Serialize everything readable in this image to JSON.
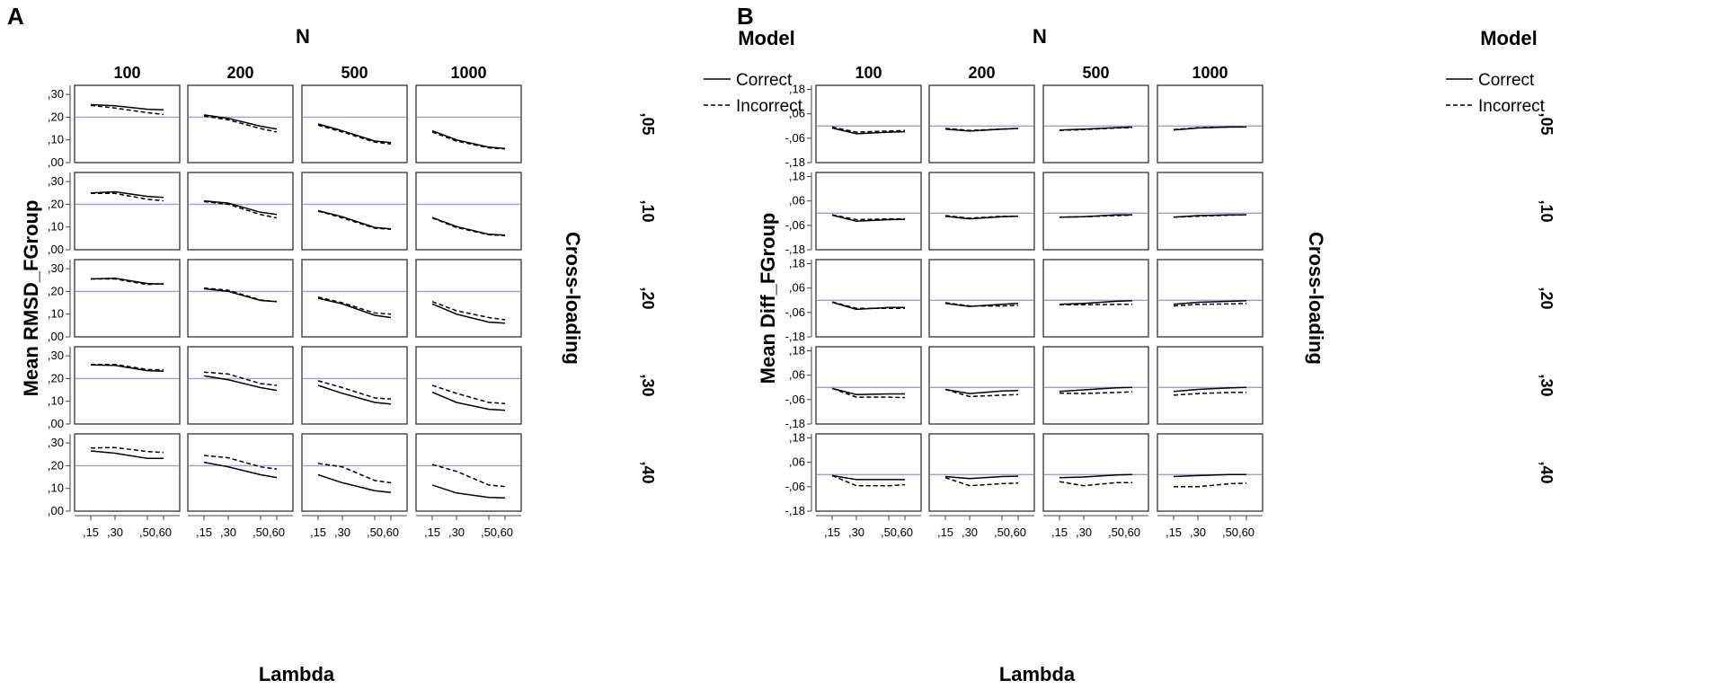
{
  "chart_data": [
    {
      "panel_label": "A",
      "type": "line",
      "facet_column_title": "N",
      "facet_columns": [
        "100",
        "200",
        "500",
        "1000"
      ],
      "facet_row_title": "Cross-loading",
      "facet_rows": [
        ",05",
        ",10",
        ",20",
        ",30",
        ",40"
      ],
      "xlabel": "Lambda",
      "ylabel": "Mean RMSD_FGroup",
      "x_tick_labels": [
        ",15",
        ",30",
        ",50",
        ",60"
      ],
      "x": [
        0.15,
        0.3,
        0.5,
        0.6
      ],
      "y_tick_labels": [
        ",00",
        ",10",
        ",20",
        ",30"
      ],
      "ylim": [
        0,
        0.34
      ],
      "yticks": [
        0,
        0.1,
        0.2,
        0.3
      ],
      "reference_line": 0.2,
      "reference_color": "#9a9af0",
      "legend_title": "Model",
      "legend": [
        "Correct",
        "Incorrect"
      ],
      "series_styles": {
        "Correct": "solid",
        "Incorrect": "dashed"
      },
      "cells": [
        [
          {
            "Correct": [
              0.255,
              0.25,
              0.235,
              0.232
            ],
            "Incorrect": [
              0.252,
              0.24,
              0.22,
              0.212
            ]
          },
          {
            "Correct": [
              0.21,
              0.195,
              0.16,
              0.148
            ],
            "Incorrect": [
              0.205,
              0.188,
              0.15,
              0.135
            ]
          },
          {
            "Correct": [
              0.17,
              0.14,
              0.095,
              0.088
            ],
            "Incorrect": [
              0.165,
              0.135,
              0.09,
              0.082
            ]
          },
          {
            "Correct": [
              0.14,
              0.1,
              0.068,
              0.062
            ],
            "Incorrect": [
              0.135,
              0.095,
              0.065,
              0.06
            ]
          }
        ],
        [
          {
            "Correct": [
              0.25,
              0.255,
              0.235,
              0.23
            ],
            "Incorrect": [
              0.248,
              0.248,
              0.222,
              0.215
            ]
          },
          {
            "Correct": [
              0.215,
              0.205,
              0.165,
              0.155
            ],
            "Incorrect": [
              0.212,
              0.2,
              0.155,
              0.14
            ]
          },
          {
            "Correct": [
              0.172,
              0.145,
              0.098,
              0.092
            ],
            "Incorrect": [
              0.17,
              0.14,
              0.095,
              0.09
            ]
          },
          {
            "Correct": [
              0.142,
              0.102,
              0.068,
              0.064
            ],
            "Incorrect": [
              0.14,
              0.098,
              0.066,
              0.062
            ]
          }
        ],
        [
          {
            "Correct": [
              0.255,
              0.258,
              0.235,
              0.232
            ],
            "Incorrect": [
              0.255,
              0.255,
              0.23,
              0.235
            ]
          },
          {
            "Correct": [
              0.212,
              0.2,
              0.16,
              0.155
            ],
            "Incorrect": [
              0.215,
              0.205,
              0.162,
              0.155
            ]
          },
          {
            "Correct": [
              0.17,
              0.145,
              0.095,
              0.085
            ],
            "Incorrect": [
              0.175,
              0.15,
              0.105,
              0.1
            ]
          },
          {
            "Correct": [
              0.145,
              0.1,
              0.065,
              0.06
            ],
            "Incorrect": [
              0.155,
              0.115,
              0.085,
              0.075
            ]
          }
        ],
        [
          {
            "Correct": [
              0.26,
              0.258,
              0.235,
              0.232
            ],
            "Incorrect": [
              0.262,
              0.262,
              0.24,
              0.238
            ]
          },
          {
            "Correct": [
              0.212,
              0.195,
              0.16,
              0.148
            ],
            "Incorrect": [
              0.228,
              0.22,
              0.178,
              0.17
            ]
          },
          {
            "Correct": [
              0.17,
              0.135,
              0.095,
              0.088
            ],
            "Incorrect": [
              0.19,
              0.16,
              0.115,
              0.11
            ]
          },
          {
            "Correct": [
              0.14,
              0.095,
              0.065,
              0.06
            ],
            "Incorrect": [
              0.17,
              0.135,
              0.095,
              0.09
            ]
          }
        ],
        [
          {
            "Correct": [
              0.265,
              0.255,
              0.232,
              0.232
            ],
            "Incorrect": [
              0.278,
              0.28,
              0.262,
              0.258
            ]
          },
          {
            "Correct": [
              0.215,
              0.195,
              0.16,
              0.148
            ],
            "Incorrect": [
              0.245,
              0.235,
              0.195,
              0.185
            ]
          },
          {
            "Correct": [
              0.16,
              0.125,
              0.09,
              0.082
            ],
            "Incorrect": [
              0.21,
              0.195,
              0.135,
              0.125
            ]
          },
          {
            "Correct": [
              0.115,
              0.08,
              0.06,
              0.058
            ],
            "Incorrect": [
              0.205,
              0.175,
              0.115,
              0.108
            ]
          }
        ]
      ]
    },
    {
      "panel_label": "B",
      "type": "line",
      "facet_column_title": "N",
      "facet_columns": [
        "100",
        "200",
        "500",
        "1000"
      ],
      "facet_row_title": "Cross-loading",
      "facet_rows": [
        ",05",
        ",10",
        ",20",
        ",30",
        ",40"
      ],
      "xlabel": "Lambda",
      "ylabel": "Mean Diff_FGroup",
      "x_tick_labels": [
        ",15",
        ",30",
        ",50",
        ",60"
      ],
      "x": [
        0.15,
        0.3,
        0.5,
        0.6
      ],
      "y_tick_labels": [
        "-,18",
        "-,06",
        ",06",
        ",18"
      ],
      "ylim": [
        -0.18,
        0.2
      ],
      "yticks": [
        -0.18,
        -0.06,
        0.06,
        0.18
      ],
      "reference_line": 0.0,
      "reference_color": "#9a9af0",
      "legend_title": "Model",
      "legend": [
        "Correct",
        "Incorrect"
      ],
      "series_styles": {
        "Correct": "solid",
        "Incorrect": "dashed"
      },
      "cells": [
        [
          {
            "Correct": [
              -0.01,
              -0.038,
              -0.03,
              -0.028
            ],
            "Incorrect": [
              -0.005,
              -0.03,
              -0.025,
              -0.022
            ]
          },
          {
            "Correct": [
              -0.015,
              -0.025,
              -0.015,
              -0.012
            ],
            "Incorrect": [
              -0.012,
              -0.022,
              -0.015,
              -0.012
            ]
          },
          {
            "Correct": [
              -0.02,
              -0.015,
              -0.008,
              -0.005
            ],
            "Incorrect": [
              -0.022,
              -0.018,
              -0.01,
              -0.008
            ]
          },
          {
            "Correct": [
              -0.02,
              -0.01,
              -0.005,
              -0.005
            ],
            "Incorrect": [
              -0.018,
              -0.008,
              -0.005,
              -0.005
            ]
          }
        ],
        [
          {
            "Correct": [
              -0.01,
              -0.04,
              -0.032,
              -0.03
            ],
            "Incorrect": [
              -0.008,
              -0.032,
              -0.028,
              -0.028
            ]
          },
          {
            "Correct": [
              -0.015,
              -0.028,
              -0.018,
              -0.015
            ],
            "Incorrect": [
              -0.012,
              -0.025,
              -0.015,
              -0.015
            ]
          },
          {
            "Correct": [
              -0.02,
              -0.018,
              -0.008,
              -0.008
            ],
            "Incorrect": [
              -0.02,
              -0.018,
              -0.012,
              -0.01
            ]
          },
          {
            "Correct": [
              -0.02,
              -0.012,
              -0.008,
              -0.008
            ],
            "Incorrect": [
              -0.02,
              -0.015,
              -0.01,
              -0.008
            ]
          }
        ],
        [
          {
            "Correct": [
              -0.01,
              -0.045,
              -0.035,
              -0.035
            ],
            "Incorrect": [
              -0.008,
              -0.04,
              -0.04,
              -0.04
            ]
          },
          {
            "Correct": [
              -0.015,
              -0.03,
              -0.02,
              -0.015
            ],
            "Incorrect": [
              -0.012,
              -0.028,
              -0.028,
              -0.025
            ]
          },
          {
            "Correct": [
              -0.02,
              -0.015,
              -0.005,
              -0.002
            ],
            "Incorrect": [
              -0.022,
              -0.022,
              -0.02,
              -0.02
            ]
          },
          {
            "Correct": [
              -0.02,
              -0.01,
              -0.005,
              -0.002
            ],
            "Incorrect": [
              -0.028,
              -0.02,
              -0.018,
              -0.015
            ]
          }
        ],
        [
          {
            "Correct": [
              -0.005,
              -0.035,
              -0.032,
              -0.032
            ],
            "Incorrect": [
              -0.005,
              -0.048,
              -0.048,
              -0.05
            ]
          },
          {
            "Correct": [
              -0.01,
              -0.03,
              -0.018,
              -0.015
            ],
            "Incorrect": [
              -0.01,
              -0.045,
              -0.038,
              -0.035
            ]
          },
          {
            "Correct": [
              -0.02,
              -0.012,
              -0.002,
              0.0
            ],
            "Incorrect": [
              -0.028,
              -0.03,
              -0.025,
              -0.022
            ]
          },
          {
            "Correct": [
              -0.02,
              -0.01,
              -0.002,
              0.0
            ],
            "Incorrect": [
              -0.038,
              -0.03,
              -0.025,
              -0.025
            ]
          }
        ],
        [
          {
            "Correct": [
              -0.005,
              -0.025,
              -0.025,
              -0.025
            ],
            "Incorrect": [
              -0.005,
              -0.055,
              -0.055,
              -0.05
            ]
          },
          {
            "Correct": [
              -0.01,
              -0.02,
              -0.01,
              -0.008
            ],
            "Incorrect": [
              -0.015,
              -0.055,
              -0.045,
              -0.042
            ]
          },
          {
            "Correct": [
              -0.015,
              -0.012,
              -0.002,
              0.0
            ],
            "Incorrect": [
              -0.035,
              -0.055,
              -0.04,
              -0.04
            ]
          },
          {
            "Correct": [
              -0.01,
              -0.005,
              0.0,
              0.0
            ],
            "Incorrect": [
              -0.06,
              -0.06,
              -0.045,
              -0.042
            ]
          }
        ]
      ]
    }
  ]
}
